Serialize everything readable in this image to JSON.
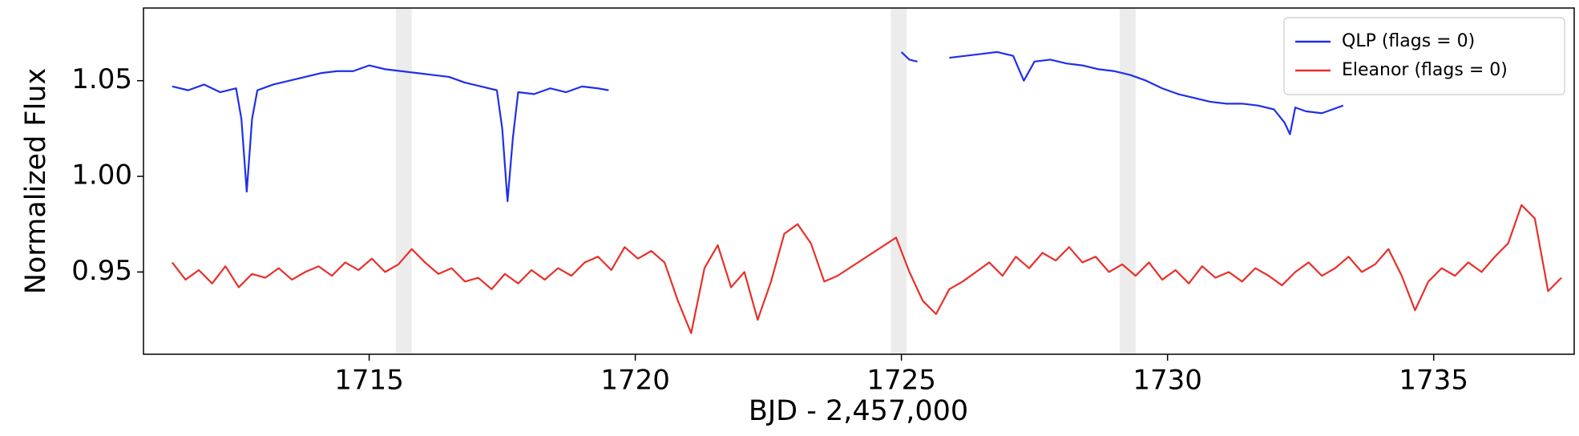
{
  "chart_data": {
    "type": "line",
    "xlabel": "BJD - 2,457,000",
    "ylabel": "Normalized Flux",
    "xlim": [
      1710.76,
      1737.64
    ],
    "ylim": [
      0.907,
      1.088
    ],
    "xticks": [
      1715,
      1720,
      1725,
      1730,
      1735
    ],
    "yticks": [
      0.95,
      {
        "value": 1,
        "label": "1.00"
      },
      1.05
    ],
    "legend": "upper right",
    "shaded_regions": [
      [
        1715.5,
        1715.8
      ],
      [
        1724.8,
        1725.1
      ],
      [
        1729.1,
        1729.4
      ]
    ],
    "shade_color": "#ececec",
    "series": [
      {
        "name": "QLP (flags = 0)",
        "color": "#1f2fe8",
        "x": [
          1711.3,
          1711.6,
          1711.9,
          1712.2,
          1712.5,
          1712.6,
          1712.7,
          1712.8,
          1712.9,
          1713.2,
          1713.5,
          1713.8,
          1714.1,
          1714.4,
          1714.7,
          1715.0,
          1715.3,
          1715.6,
          1715.9,
          1716.2,
          1716.5,
          1716.8,
          1717.1,
          1717.4,
          1717.5,
          1717.6,
          1717.7,
          1717.8,
          1718.1,
          1718.4,
          1718.7,
          1719.0,
          1719.3,
          1719.5,
          1722.0,
          1725.0,
          1725.15,
          1725.3,
          1725.6,
          1725.9,
          1726.2,
          1726.5,
          1726.8,
          1727.1,
          1727.3,
          1727.5,
          1727.8,
          1728.1,
          1728.4,
          1728.7,
          1729.0,
          1729.3,
          1729.6,
          1729.9,
          1730.2,
          1730.5,
          1730.8,
          1731.1,
          1731.4,
          1731.7,
          1732.0,
          1732.2,
          1732.3,
          1732.4,
          1732.6,
          1732.9,
          1733.3
        ],
        "values": [
          1.047,
          1.045,
          1.048,
          1.044,
          1.046,
          1.03,
          0.992,
          1.03,
          1.045,
          1.048,
          1.05,
          1.052,
          1.054,
          1.055,
          1.055,
          1.058,
          1.056,
          1.055,
          1.054,
          1.053,
          1.052,
          1.049,
          1.047,
          1.045,
          1.025,
          0.987,
          1.02,
          1.044,
          1.043,
          1.046,
          1.044,
          1.047,
          1.046,
          1.045,
          null,
          1.065,
          1.061,
          1.06,
          null,
          1.062,
          1.063,
          1.064,
          1.065,
          1.063,
          1.05,
          1.06,
          1.061,
          1.059,
          1.058,
          1.056,
          1.055,
          1.053,
          1.05,
          1.046,
          1.043,
          1.041,
          1.039,
          1.038,
          1.038,
          1.037,
          1.035,
          1.028,
          1.022,
          1.036,
          1.034,
          1.033,
          1.037
        ]
      },
      {
        "name": "Eleanor (flags = 0)",
        "color": "#e8302a",
        "x": [
          1711.3,
          1711.55,
          1711.8,
          1712.05,
          1712.3,
          1712.55,
          1712.8,
          1713.05,
          1713.3,
          1713.55,
          1713.8,
          1714.05,
          1714.3,
          1714.55,
          1714.8,
          1715.05,
          1715.3,
          1715.55,
          1715.8,
          1716.05,
          1716.3,
          1716.55,
          1716.8,
          1717.05,
          1717.3,
          1717.55,
          1717.8,
          1718.05,
          1718.3,
          1718.55,
          1718.8,
          1719.05,
          1719.3,
          1719.55,
          1719.8,
          1720.05,
          1720.3,
          1720.55,
          1720.8,
          1721.05,
          1721.3,
          1721.55,
          1721.8,
          1722.05,
          1722.3,
          1722.55,
          1722.8,
          1723.05,
          1723.3,
          1723.55,
          1723.8,
          1724.9,
          1725.15,
          1725.4,
          1725.65,
          1725.9,
          1726.15,
          1726.4,
          1726.65,
          1726.9,
          1727.15,
          1727.4,
          1727.65,
          1727.9,
          1728.15,
          1728.4,
          1728.65,
          1728.9,
          1729.15,
          1729.4,
          1729.65,
          1729.9,
          1730.15,
          1730.4,
          1730.65,
          1730.9,
          1731.15,
          1731.4,
          1731.65,
          1731.9,
          1732.15,
          1732.4,
          1732.65,
          1732.9,
          1733.15,
          1733.4,
          1733.65,
          1733.9,
          1734.15,
          1734.4,
          1734.65,
          1734.9,
          1735.15,
          1735.4,
          1735.65,
          1735.9,
          1736.15,
          1736.4,
          1736.65,
          1736.9,
          1737.15,
          1737.4
        ],
        "values": [
          0.955,
          0.946,
          0.951,
          0.944,
          0.953,
          0.942,
          0.949,
          0.947,
          0.952,
          0.946,
          0.95,
          0.953,
          0.948,
          0.955,
          0.951,
          0.957,
          0.95,
          0.954,
          0.962,
          0.955,
          0.949,
          0.952,
          0.945,
          0.947,
          0.941,
          0.949,
          0.944,
          0.951,
          0.946,
          0.952,
          0.948,
          0.955,
          0.958,
          0.951,
          0.963,
          0.957,
          0.961,
          0.955,
          0.935,
          0.918,
          0.952,
          0.964,
          0.942,
          0.95,
          0.925,
          0.945,
          0.97,
          0.975,
          0.965,
          0.945,
          0.948,
          0.968,
          0.95,
          0.935,
          0.928,
          0.941,
          0.945,
          0.95,
          0.955,
          0.948,
          0.958,
          0.952,
          0.96,
          0.956,
          0.963,
          0.955,
          0.958,
          0.95,
          0.954,
          0.948,
          0.955,
          0.946,
          0.951,
          0.944,
          0.953,
          0.947,
          0.95,
          0.945,
          0.952,
          0.948,
          0.943,
          0.95,
          0.955,
          0.948,
          0.952,
          0.958,
          0.95,
          0.954,
          0.962,
          0.948,
          0.93,
          0.945,
          0.952,
          0.948,
          0.955,
          0.95,
          0.958,
          0.965,
          0.985,
          0.978,
          0.94,
          0.947
        ]
      }
    ]
  }
}
